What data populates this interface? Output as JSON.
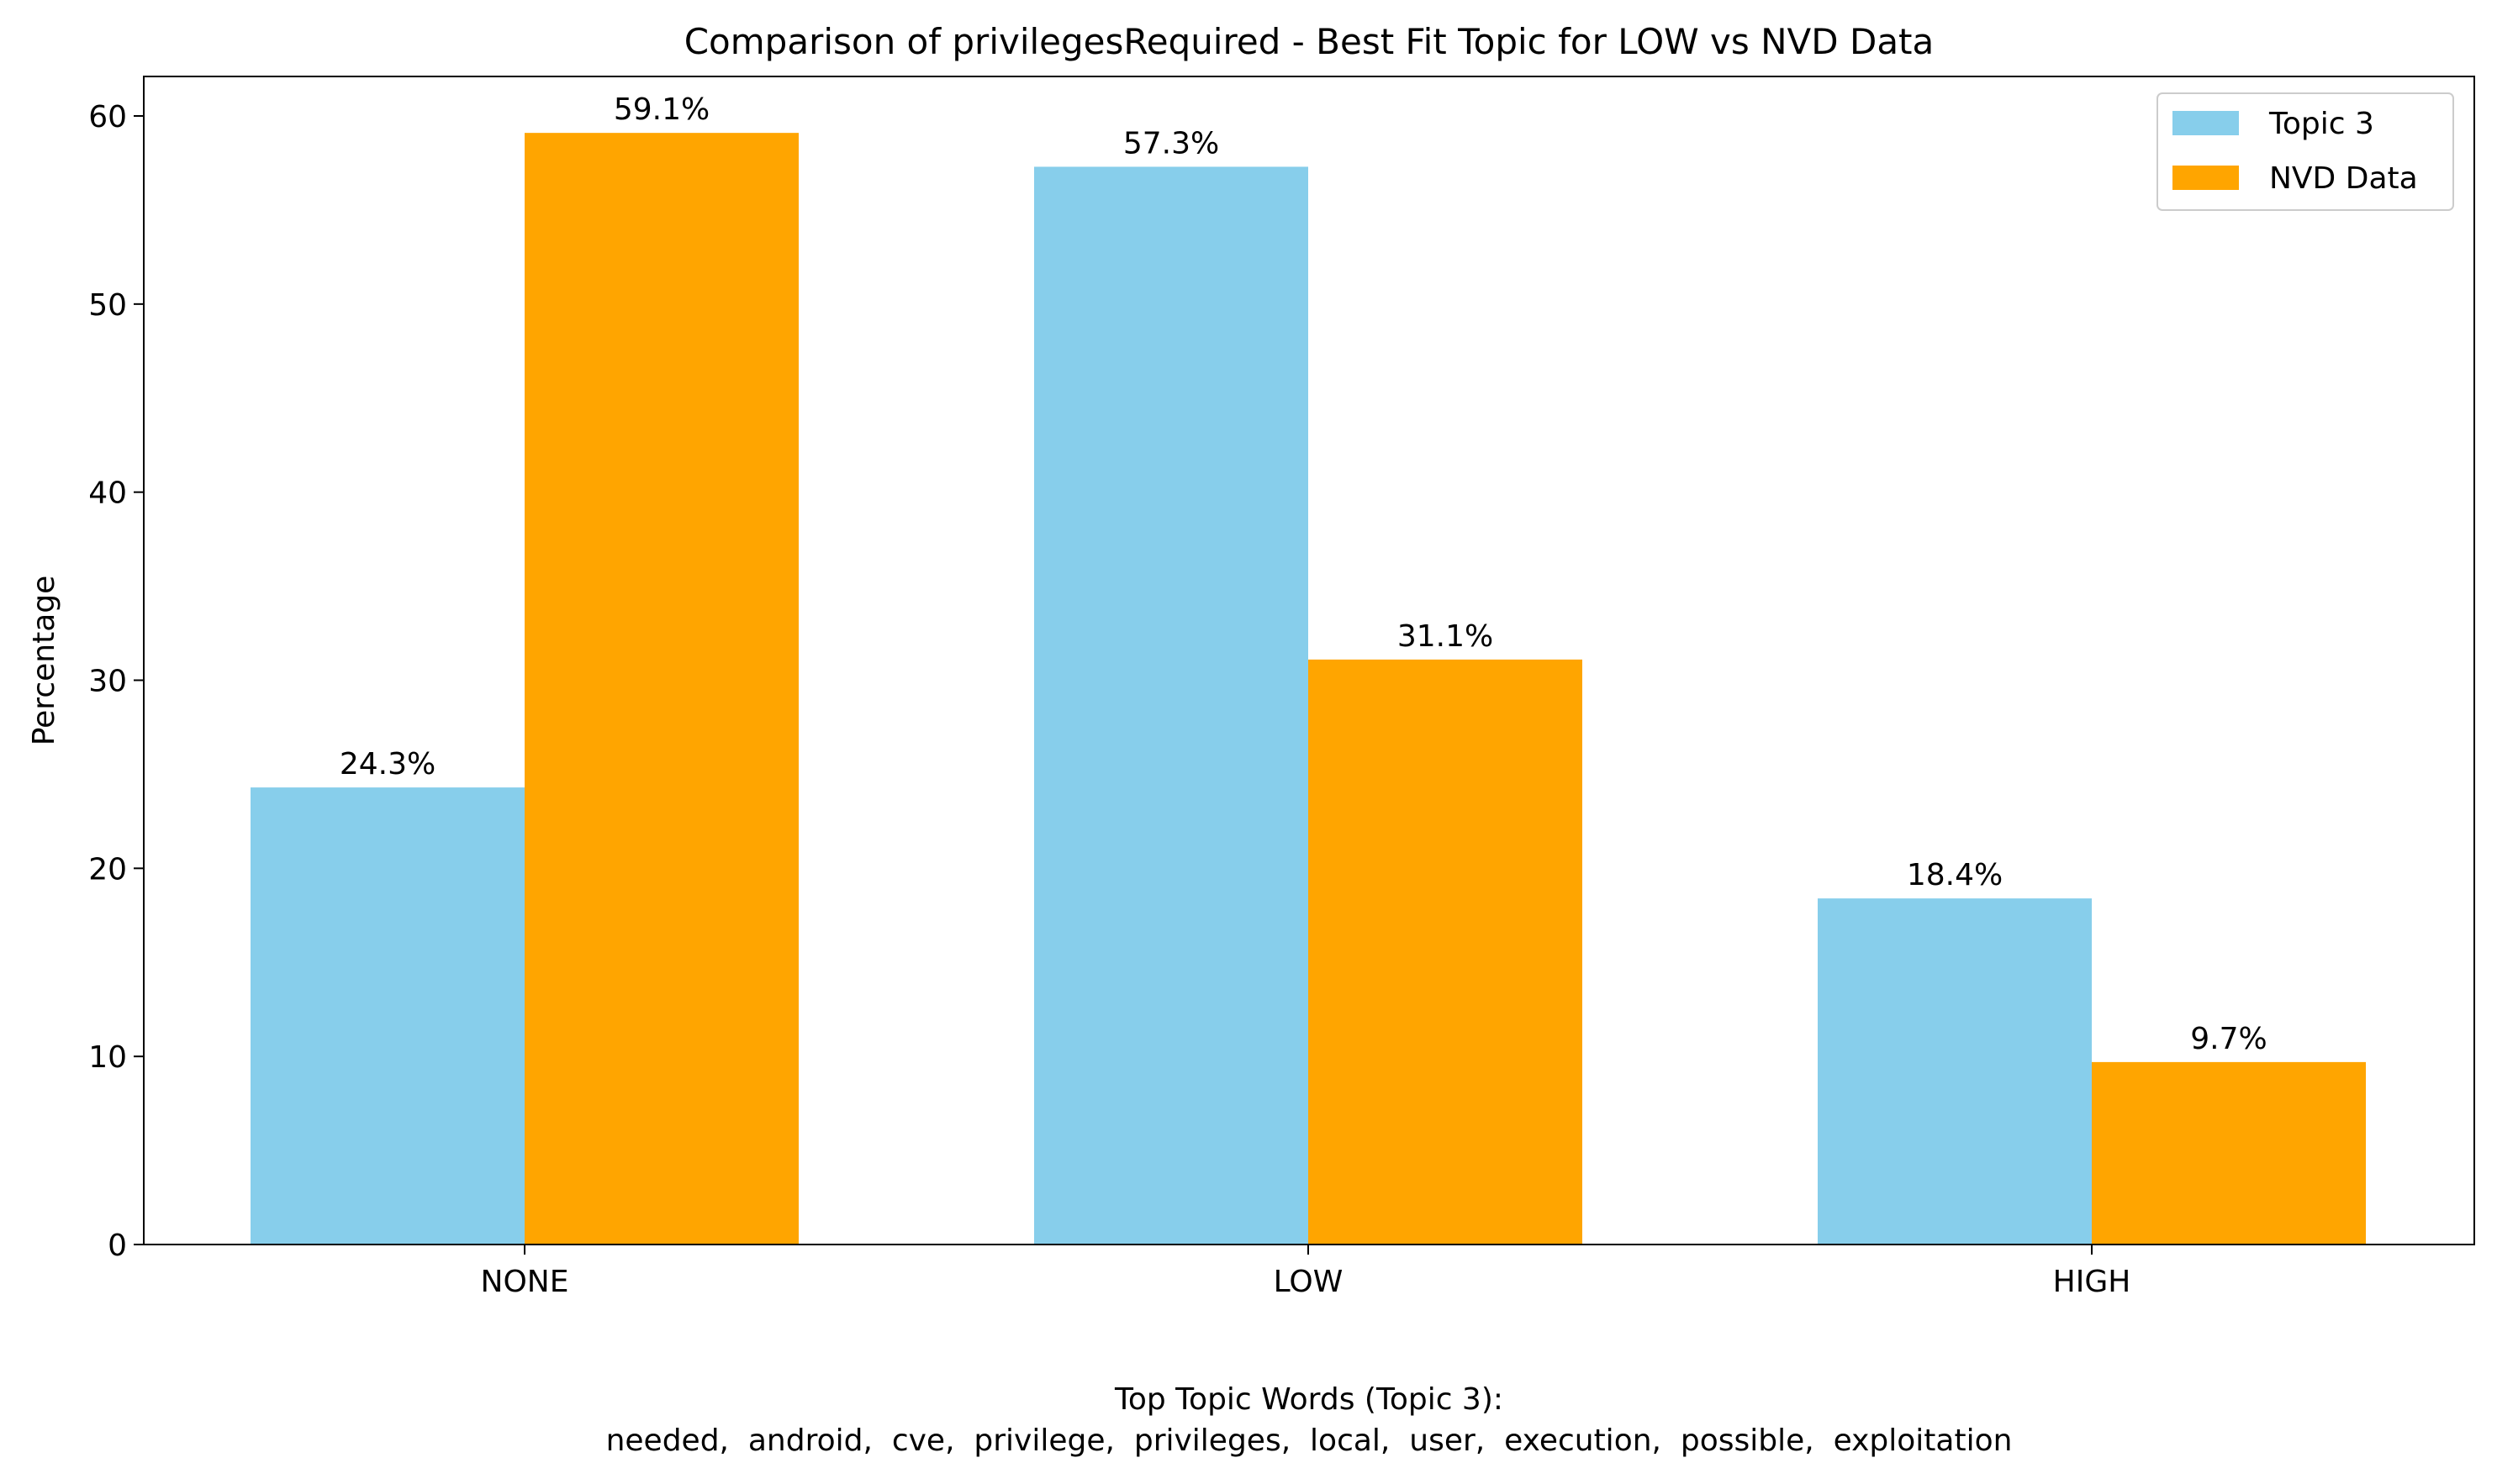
{
  "colors": {
    "topic": "#87CEEB",
    "nvd": "#FFA500",
    "axis": "#000000",
    "legend_border": "#cccccc"
  },
  "chart_data": {
    "type": "bar",
    "title": "Comparison of privilegesRequired - Best Fit Topic for LOW vs NVD Data",
    "xlabel": "",
    "ylabel": "Percentage",
    "categories": [
      "NONE",
      "LOW",
      "HIGH"
    ],
    "series": [
      {
        "name": "Topic 3",
        "values": [
          24.3,
          57.3,
          18.4
        ],
        "labels": [
          "24.3%",
          "57.3%",
          "18.4%"
        ],
        "color": "#87CEEB"
      },
      {
        "name": "NVD Data",
        "values": [
          59.1,
          31.1,
          9.7
        ],
        "labels": [
          "59.1%",
          "31.1%",
          "9.7%"
        ],
        "color": "#FFA500"
      }
    ],
    "ylim": [
      0,
      62.1
    ],
    "yticks": [
      0,
      10,
      20,
      30,
      40,
      50,
      60
    ],
    "ytick_labels": [
      "0",
      "10",
      "20",
      "30",
      "40",
      "50",
      "60"
    ],
    "grid": false,
    "legend_position": "top-right",
    "annotation": {
      "line1": "Top Topic Words (Topic 3):",
      "line2": "needed,  android,  cve,  privilege,  privileges,  local,  user,  execution,  possible,  exploitation"
    }
  }
}
